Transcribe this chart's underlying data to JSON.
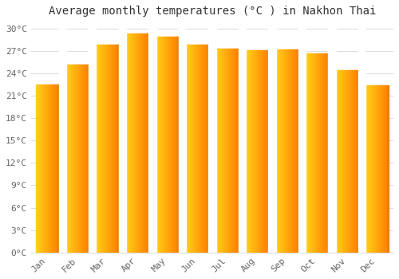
{
  "title": "Average monthly temperatures (°C ) in Nakhon Thai",
  "months": [
    "Jan",
    "Feb",
    "Mar",
    "Apr",
    "May",
    "Jun",
    "Jul",
    "Aug",
    "Sep",
    "Oct",
    "Nov",
    "Dec"
  ],
  "temperatures": [
    22.5,
    25.2,
    27.8,
    29.3,
    28.9,
    27.8,
    27.3,
    27.1,
    27.2,
    26.7,
    24.4,
    22.4
  ],
  "bar_color_left": "#FFD040",
  "bar_color_right": "#FFA000",
  "ylim": [
    0,
    31
  ],
  "yticks": [
    0,
    3,
    6,
    9,
    12,
    15,
    18,
    21,
    24,
    27,
    30
  ],
  "ytick_labels": [
    "0°C",
    "3°C",
    "6°C",
    "9°C",
    "12°C",
    "15°C",
    "18°C",
    "21°C",
    "24°C",
    "27°C",
    "30°C"
  ],
  "background_color": "#FFFFFF",
  "grid_color": "#DDDDDD",
  "title_fontsize": 10,
  "tick_fontsize": 8,
  "tick_color": "#666666",
  "title_color": "#333333",
  "font_family": "monospace"
}
